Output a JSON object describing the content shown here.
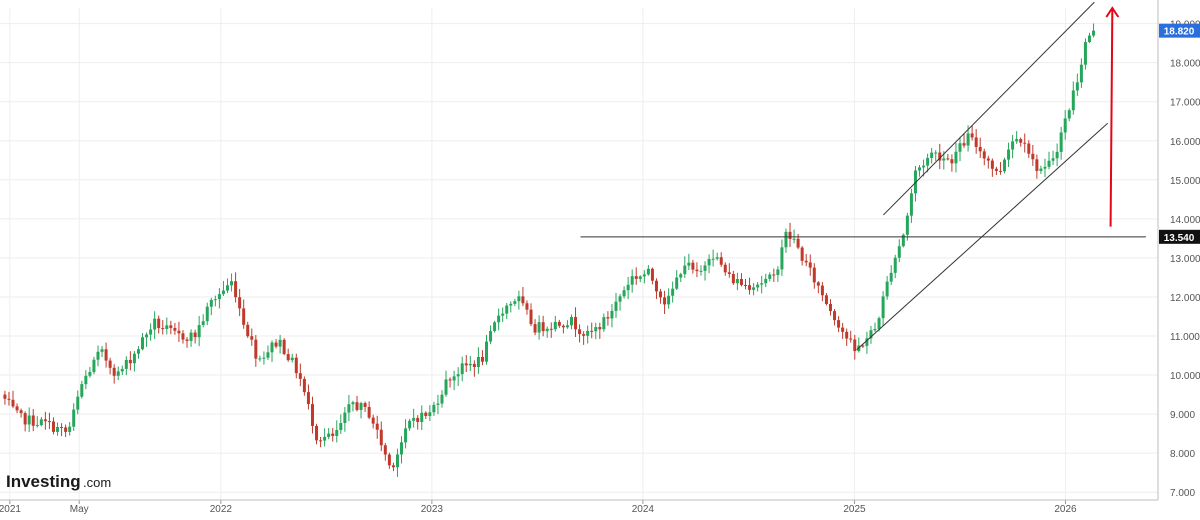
{
  "logo": {
    "brand": "Investing",
    "suffix": ".com"
  },
  "chart_data": {
    "type": "candlestick",
    "title": "",
    "xlabel": "",
    "ylabel": "",
    "ylim": [
      6.8,
      19.4
    ],
    "y_ticks": [
      "7.000",
      "8.000",
      "9.000",
      "10.000",
      "11.000",
      "12.000",
      "13.000",
      "14.000",
      "15.000",
      "16.000",
      "17.000",
      "18.000",
      "19.000"
    ],
    "x_ticks": [
      {
        "label": "2021",
        "date": "2021-01-01"
      },
      {
        "label": "May",
        "date": "2021-05-01"
      },
      {
        "label": "2022",
        "date": "2022-01-01"
      },
      {
        "label": "2023",
        "date": "2023-01-01"
      },
      {
        "label": "2024",
        "date": "2024-01-01"
      },
      {
        "label": "2025",
        "date": "2025-01-01"
      },
      {
        "label": "2026",
        "date": "2026-01-01"
      }
    ],
    "last_price_label": "18.820",
    "last_price": 18.82,
    "level_label": "13.540",
    "level_price": 13.54,
    "colors": {
      "up": "#26a65b",
      "down": "#c0392b",
      "last_badge": "#2a6fdb",
      "level_badge": "#111111",
      "arrow": "#e30613"
    },
    "anchors": [
      [
        "2020-12-20",
        9.5
      ],
      [
        "2021-01-20",
        8.9
      ],
      [
        "2021-03-10",
        8.75
      ],
      [
        "2021-04-15",
        8.5
      ],
      [
        "2021-05-10",
        9.8
      ],
      [
        "2021-06-10",
        10.6
      ],
      [
        "2021-07-10",
        10.0
      ],
      [
        "2021-08-10",
        10.6
      ],
      [
        "2021-09-10",
        11.35
      ],
      [
        "2021-10-20",
        11.0
      ],
      [
        "2021-11-20",
        11.0
      ],
      [
        "2021-12-20",
        11.9
      ],
      [
        "2022-01-25",
        12.4
      ],
      [
        "2022-02-10",
        11.5
      ],
      [
        "2022-03-10",
        10.4
      ],
      [
        "2022-04-15",
        10.9
      ],
      [
        "2022-05-20",
        10.0
      ],
      [
        "2022-06-20",
        8.4
      ],
      [
        "2022-07-20",
        8.4
      ],
      [
        "2022-08-20",
        9.3
      ],
      [
        "2022-09-20",
        9.0
      ],
      [
        "2022-10-25",
        7.6
      ],
      [
        "2022-12-01",
        8.9
      ],
      [
        "2023-01-01",
        9.0
      ],
      [
        "2023-02-01",
        9.9
      ],
      [
        "2023-03-01",
        10.2
      ],
      [
        "2023-04-01",
        10.4
      ],
      [
        "2023-05-01",
        11.6
      ],
      [
        "2023-06-01",
        12.0
      ],
      [
        "2023-07-01",
        11.2
      ],
      [
        "2023-08-01",
        11.3
      ],
      [
        "2023-09-01",
        11.4
      ],
      [
        "2023-10-01",
        11.0
      ],
      [
        "2023-11-01",
        11.4
      ],
      [
        "2023-12-15",
        12.5
      ],
      [
        "2024-01-15",
        12.6
      ],
      [
        "2024-02-15",
        11.8
      ],
      [
        "2024-03-15",
        12.9
      ],
      [
        "2024-04-10",
        12.5
      ],
      [
        "2024-05-01",
        13.2
      ],
      [
        "2024-06-01",
        12.5
      ],
      [
        "2024-07-01",
        12.3
      ],
      [
        "2024-08-01",
        12.4
      ],
      [
        "2024-08-20",
        12.5
      ],
      [
        "2024-09-05",
        13.6
      ],
      [
        "2024-09-20",
        13.5
      ],
      [
        "2024-10-10",
        12.9
      ],
      [
        "2024-11-05",
        12.2
      ],
      [
        "2024-12-01",
        11.5
      ],
      [
        "2025-01-05",
        10.6
      ],
      [
        "2025-02-10",
        11.2
      ],
      [
        "2025-03-10",
        12.8
      ],
      [
        "2025-04-01",
        13.7
      ],
      [
        "2025-04-20",
        15.2
      ],
      [
        "2025-05-20",
        15.7
      ],
      [
        "2025-06-20",
        15.5
      ],
      [
        "2025-07-20",
        16.1
      ],
      [
        "2025-08-20",
        15.6
      ],
      [
        "2025-09-10",
        15.1
      ],
      [
        "2025-10-01",
        16.0
      ],
      [
        "2025-10-25",
        16.1
      ],
      [
        "2025-11-10",
        15.4
      ],
      [
        "2025-12-01",
        15.2
      ],
      [
        "2025-12-20",
        15.8
      ],
      [
        "2026-01-10",
        16.8
      ],
      [
        "2026-01-25",
        17.6
      ],
      [
        "2026-02-10",
        18.6
      ],
      [
        "2026-02-20",
        18.82
      ]
    ],
    "trendlines": [
      {
        "name": "upper-channel",
        "from": [
          "2025-02-20",
          14.1
        ],
        "to": [
          "2026-02-20",
          19.55
        ]
      },
      {
        "name": "lower-channel",
        "from": [
          "2025-01-05",
          10.65
        ],
        "to": [
          "2026-03-15",
          16.45
        ]
      },
      {
        "name": "resistance",
        "from": [
          "2023-09-15",
          13.54
        ],
        "to": [
          "2026-05-20",
          13.54
        ]
      }
    ],
    "arrow": {
      "from": [
        "2026-03-20",
        13.8
      ],
      "to": [
        "2026-03-23",
        19.4
      ]
    }
  }
}
